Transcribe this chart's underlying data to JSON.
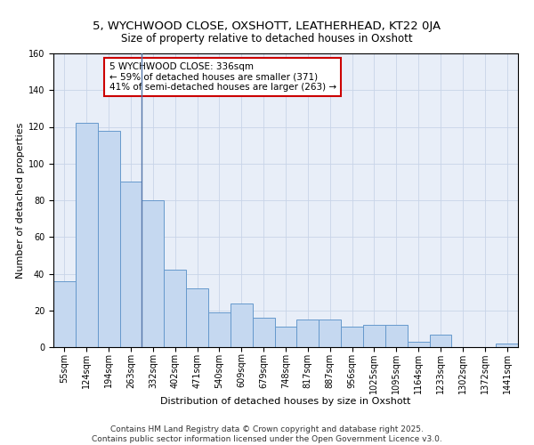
{
  "title": "5, WYCHWOOD CLOSE, OXSHOTT, LEATHERHEAD, KT22 0JA",
  "subtitle": "Size of property relative to detached houses in Oxshott",
  "xlabel": "Distribution of detached houses by size in Oxshott",
  "ylabel": "Number of detached properties",
  "categories": [
    "55sqm",
    "124sqm",
    "194sqm",
    "263sqm",
    "332sqm",
    "402sqm",
    "471sqm",
    "540sqm",
    "609sqm",
    "679sqm",
    "748sqm",
    "817sqm",
    "887sqm",
    "956sqm",
    "1025sqm",
    "1095sqm",
    "1164sqm",
    "1233sqm",
    "1302sqm",
    "1372sqm",
    "1441sqm"
  ],
  "values": [
    36,
    122,
    118,
    90,
    80,
    42,
    32,
    19,
    24,
    16,
    11,
    15,
    15,
    11,
    12,
    12,
    3,
    7,
    0,
    0,
    2
  ],
  "bar_color": "#c5d8f0",
  "bar_edge_color": "#6699cc",
  "vline_index": 4,
  "vline_color": "#5577aa",
  "annotation_line1": "5 WYCHWOOD CLOSE: 336sqm",
  "annotation_line2": "← 59% of detached houses are smaller (371)",
  "annotation_line3": "41% of semi-detached houses are larger (263) →",
  "annotation_box_edgecolor": "#cc0000",
  "ylim": [
    0,
    160
  ],
  "yticks": [
    0,
    20,
    40,
    60,
    80,
    100,
    120,
    140,
    160
  ],
  "grid_color": "#c8d4e8",
  "bg_color": "#e8eef8",
  "footer": "Contains HM Land Registry data © Crown copyright and database right 2025.\nContains public sector information licensed under the Open Government Licence v3.0.",
  "title_fontsize": 9.5,
  "subtitle_fontsize": 8.5,
  "axis_label_fontsize": 8,
  "tick_fontsize": 7,
  "annotation_fontsize": 7.5,
  "footer_fontsize": 6.5
}
